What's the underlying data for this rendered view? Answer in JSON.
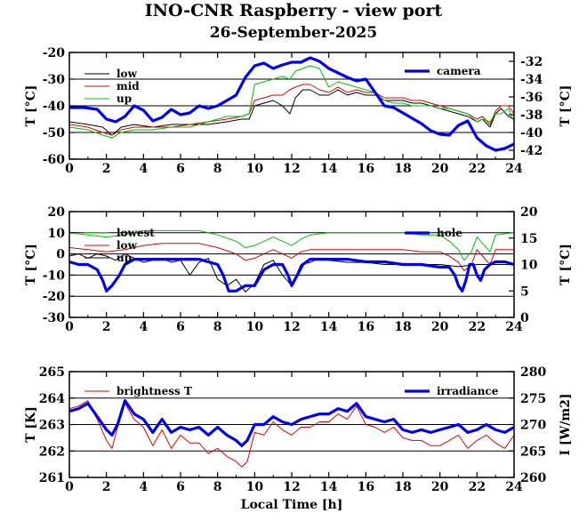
{
  "title": "INO-CNR Raspberry - view port",
  "subtitle": "26-September-2025",
  "xlabel": "Local Time [h]",
  "chart_data": [
    {
      "type": "line",
      "xlim": [
        0,
        24
      ],
      "ylim": [
        -60,
        -20
      ],
      "y2lim": [
        -43,
        -31
      ],
      "xticks": [
        "0",
        "2",
        "4",
        "6",
        "8",
        "10",
        "12",
        "14",
        "16",
        "18",
        "20",
        "22",
        "24"
      ],
      "yticks": [
        "-60",
        "-50",
        "-40",
        "-30",
        "-20"
      ],
      "y2ticks": [
        "-42",
        "-40",
        "-38",
        "-36",
        "-34",
        "-32"
      ],
      "ylabel": "T [°C]",
      "y2label": "T [°C]",
      "grid": true,
      "series": [
        {
          "name": "low",
          "color": "#000000",
          "axis": "left",
          "x": [
            0,
            1,
            1.8,
            2.3,
            2.8,
            3.5,
            4.5,
            5.5,
            6.5,
            7.5,
            8.5,
            9.3,
            9.7,
            10,
            10.5,
            11,
            11.5,
            11.9,
            12.2,
            12.6,
            13,
            13.5,
            14,
            14.5,
            15,
            15.5,
            16,
            16.5,
            17,
            17.5,
            18,
            18.5,
            19,
            19.5,
            20,
            20.5,
            21,
            21.5,
            22,
            22.3,
            22.7,
            23,
            23.3,
            23.7,
            24
          ],
          "y": [
            -46,
            -47,
            -48,
            -51,
            -48,
            -47,
            -48,
            -47,
            -47,
            -47,
            -46,
            -45,
            -45,
            -40,
            -39,
            -38,
            -40,
            -43,
            -37,
            -34,
            -34,
            -36,
            -36,
            -34,
            -36,
            -35,
            -36,
            -36,
            -38,
            -38,
            -38,
            -39,
            -39,
            -40,
            -41,
            -42,
            -43,
            -44,
            -46,
            -45,
            -48,
            -43,
            -41,
            -44,
            -45
          ]
        },
        {
          "name": "mid",
          "color": "#e00000",
          "axis": "left",
          "x": [
            0,
            1,
            1.8,
            2.3,
            2.8,
            3.5,
            4.5,
            5.5,
            6.5,
            7.5,
            8.5,
            9.3,
            9.7,
            10,
            10.5,
            11,
            11.5,
            11.9,
            12.2,
            12.6,
            13,
            13.5,
            14,
            14.5,
            15,
            15.5,
            16,
            16.5,
            17,
            17.5,
            18,
            18.5,
            19,
            19.5,
            20,
            20.5,
            21,
            21.5,
            22,
            22.3,
            22.7,
            23,
            23.3,
            23.7,
            24
          ],
          "y": [
            -47,
            -48,
            -50,
            -51,
            -49,
            -48,
            -48,
            -48,
            -47,
            -46,
            -45,
            -44,
            -43,
            -38,
            -37,
            -36,
            -36,
            -34,
            -33,
            -32,
            -32,
            -34,
            -35,
            -33,
            -35,
            -34,
            -35,
            -35,
            -37,
            -37,
            -37,
            -38,
            -38,
            -39,
            -40,
            -41,
            -42,
            -43,
            -45,
            -44,
            -47,
            -42,
            -40,
            -40,
            -43
          ]
        },
        {
          "name": "up",
          "color": "#00c000",
          "axis": "left",
          "x": [
            0,
            1,
            1.8,
            2.3,
            2.8,
            3.5,
            4.5,
            5.5,
            6.5,
            7.5,
            8.5,
            9.3,
            9.7,
            10,
            10.5,
            11,
            11.5,
            11.9,
            12.2,
            12.6,
            13,
            13.5,
            14,
            14.5,
            15,
            15.5,
            16,
            16.5,
            17,
            17.5,
            18,
            18.5,
            19,
            19.5,
            20,
            20.5,
            21,
            21.5,
            22,
            22.3,
            22.7,
            23,
            23.3,
            23.7,
            24
          ],
          "y": [
            -48,
            -49,
            -51,
            -52,
            -50,
            -49,
            -49,
            -48,
            -48,
            -46,
            -44,
            -44,
            -43,
            -32,
            -31,
            -30,
            -29,
            -30,
            -27,
            -26,
            -25,
            -26,
            -33,
            -31,
            -32,
            -33,
            -34,
            -35,
            -38,
            -39,
            -39,
            -40,
            -40,
            -40,
            -41,
            -41,
            -42,
            -43,
            -46,
            -45,
            -46,
            -43,
            -43,
            -41,
            -46
          ]
        },
        {
          "name": "camera",
          "color": "#0000ee",
          "axis": "right",
          "x": [
            0,
            0.8,
            1.5,
            2,
            2.5,
            3,
            3.5,
            4,
            4.5,
            5,
            5.5,
            6,
            6.5,
            7,
            7.5,
            8,
            8.5,
            9,
            9.5,
            10,
            10.5,
            11,
            11.5,
            12,
            12.5,
            13,
            13.5,
            14,
            14.5,
            15,
            15.5,
            16,
            16.5,
            17,
            17.5,
            18,
            18.5,
            19,
            19.5,
            20,
            20.5,
            21,
            21.5,
            22,
            22.5,
            23,
            23.5,
            24
          ],
          "y": [
            -37.2,
            -37.2,
            -37.4,
            -38.5,
            -38.8,
            -38.2,
            -37,
            -37.5,
            -38.7,
            -38.3,
            -37.4,
            -38,
            -37.8,
            -37,
            -37.3,
            -37,
            -36.4,
            -35.8,
            -33.8,
            -32.5,
            -32.2,
            -32.8,
            -32.4,
            -32.1,
            -32.1,
            -31.6,
            -32,
            -32.8,
            -33.3,
            -33.8,
            -34.2,
            -34,
            -35.5,
            -37,
            -37.2,
            -37.8,
            -38.4,
            -39,
            -39.8,
            -40.2,
            -40.3,
            -39.2,
            -38.7,
            -40.6,
            -41.5,
            -42,
            -41.8,
            -41.3
          ]
        }
      ],
      "legend": "top"
    },
    {
      "type": "line",
      "xlim": [
        0,
        24
      ],
      "ylim": [
        -30,
        20
      ],
      "y2lim": [
        0,
        20
      ],
      "xticks": [
        "0",
        "2",
        "4",
        "6",
        "8",
        "10",
        "12",
        "14",
        "16",
        "18",
        "20",
        "22",
        "24"
      ],
      "yticks": [
        "-30",
        "-20",
        "-10",
        "0",
        "10",
        "20"
      ],
      "y2ticks": [
        "0",
        "5",
        "10",
        "15",
        "20"
      ],
      "ylabel": "T [°C]",
      "y2label": "T [°C]",
      "grid": true,
      "series": [
        {
          "name": "lowest",
          "color": "#00c000",
          "axis": "left",
          "x": [
            0,
            1,
            2,
            3,
            4,
            5,
            6,
            7,
            8,
            9,
            9.5,
            10,
            10.5,
            11,
            11.5,
            12,
            12.5,
            13,
            14,
            15,
            16,
            17,
            18,
            19,
            20,
            20.5,
            21,
            21.3,
            21.7,
            22,
            22.3,
            22.7,
            23,
            24
          ],
          "y": [
            10,
            9,
            8,
            9,
            11,
            11,
            11,
            11,
            9,
            6,
            3,
            4,
            6,
            8,
            6,
            4,
            7,
            9,
            10,
            10,
            10,
            10,
            10,
            9,
            9,
            6,
            2,
            -3,
            1,
            8,
            5,
            1,
            9,
            10
          ]
        },
        {
          "name": "low",
          "color": "#e00000",
          "axis": "left",
          "x": [
            0,
            1,
            2,
            3,
            4,
            5,
            6,
            7,
            8,
            9,
            9.5,
            10,
            10.5,
            11,
            11.5,
            12,
            12.5,
            13,
            14,
            15,
            16,
            17,
            18,
            19,
            20,
            20.5,
            21,
            21.3,
            21.7,
            22,
            22.3,
            22.7,
            23,
            24
          ],
          "y": [
            3,
            2,
            1,
            2,
            4,
            5,
            5,
            5,
            3,
            0,
            -3,
            -2,
            0,
            2,
            0,
            -2,
            1,
            2,
            2,
            2,
            2,
            2,
            2,
            1,
            1,
            -1,
            -4,
            -8,
            -5,
            2,
            -1,
            -5,
            2,
            2
          ]
        },
        {
          "name": "up",
          "color": "#000000",
          "axis": "left",
          "x": [
            0,
            0.5,
            1,
            1.5,
            2,
            2.5,
            3,
            3.5,
            4,
            4.5,
            5,
            5.5,
            6,
            6.5,
            7,
            7.5,
            8,
            8.5,
            9,
            9.5,
            10,
            10.5,
            11,
            11.5,
            12,
            12.5,
            13,
            13.5,
            14,
            15,
            16,
            17,
            18,
            19,
            20,
            21,
            22,
            23,
            24
          ],
          "y": [
            -1,
            0,
            -2,
            0,
            -1,
            -3,
            0,
            -2,
            -4,
            -3,
            -2,
            -4,
            -3,
            -10,
            -4,
            -2,
            -12,
            -15,
            -12,
            -18,
            -14,
            -5,
            -3,
            -10,
            -15,
            -5,
            -4,
            -2,
            -3,
            -4,
            -4,
            -5,
            -5,
            -5,
            -5,
            -6,
            -5,
            -5,
            -5
          ]
        },
        {
          "name": "hole",
          "color": "#0000ee",
          "axis": "right",
          "x": [
            0,
            0.5,
            1,
            1.5,
            1.8,
            2,
            2.3,
            2.7,
            3,
            3.5,
            4,
            5,
            6,
            7,
            8,
            8.3,
            8.6,
            9,
            9.5,
            10,
            10.5,
            11,
            11.5,
            11.8,
            12,
            12.3,
            12.6,
            13,
            14,
            15,
            16,
            17,
            18,
            19,
            20,
            20.5,
            20.8,
            21,
            21.2,
            21.4,
            21.6,
            21.8,
            22,
            22.2,
            22.4,
            22.7,
            23,
            23.5,
            24
          ],
          "y": [
            10.5,
            10,
            10,
            9,
            7,
            5,
            6,
            8,
            10,
            11,
            11,
            11,
            11,
            11,
            10,
            8,
            5,
            5,
            6,
            6,
            9,
            10,
            10,
            8,
            6,
            8,
            10,
            11,
            11,
            11,
            10.5,
            10.5,
            10,
            10,
            9.5,
            9.5,
            8,
            6,
            5,
            7,
            10,
            10,
            8,
            7,
            9,
            10,
            10.5,
            10.5,
            10
          ]
        }
      ],
      "legend": "top"
    },
    {
      "type": "line",
      "xlim": [
        0,
        24
      ],
      "ylim": [
        261,
        265
      ],
      "y2lim": [
        260,
        280
      ],
      "xticks": [
        "0",
        "2",
        "4",
        "6",
        "8",
        "10",
        "12",
        "14",
        "16",
        "18",
        "20",
        "22",
        "24"
      ],
      "yticks": [
        "261",
        "262",
        "263",
        "264",
        "265"
      ],
      "y2ticks": [
        "260",
        "265",
        "270",
        "275",
        "280"
      ],
      "ylabel": "T [K]",
      "y2label": "I [W/m2]",
      "grid": true,
      "series": [
        {
          "name": "brightness T",
          "color": "#e00000",
          "axis": "left",
          "x": [
            0,
            0.5,
            1,
            1.5,
            2,
            2.3,
            2.6,
            3,
            3.5,
            4,
            4.5,
            5,
            5.5,
            6,
            6.5,
            7,
            7.5,
            8,
            8.5,
            9,
            9.3,
            9.6,
            10,
            10.5,
            11,
            11.5,
            12,
            12.5,
            13,
            13.5,
            14,
            14.5,
            15,
            15.5,
            16,
            16.5,
            17,
            17.5,
            18,
            18.5,
            19,
            19.5,
            20,
            20.5,
            21,
            21.5,
            22,
            22.5,
            23,
            23.5,
            24
          ],
          "y": [
            263.6,
            263.7,
            263.9,
            263.2,
            262.4,
            262.1,
            262.9,
            263.8,
            263.2,
            262.9,
            262.2,
            262.8,
            262.1,
            262.6,
            262.3,
            262.3,
            261.9,
            262.1,
            261.8,
            261.6,
            261.4,
            261.6,
            262.7,
            262.6,
            263.1,
            262.8,
            262.6,
            262.9,
            262.9,
            263.1,
            263.1,
            263.4,
            263.2,
            263.7,
            263.0,
            262.9,
            262.7,
            262.9,
            262.5,
            262.4,
            262.4,
            262.2,
            262.2,
            262.4,
            262.6,
            262.1,
            262.4,
            262.6,
            262.3,
            262.1,
            262.6
          ]
        },
        {
          "name": "irradiance",
          "color": "#0000ee",
          "axis": "right",
          "x": [
            0,
            0.5,
            1,
            1.5,
            2,
            2.3,
            2.6,
            3,
            3.5,
            4,
            4.5,
            5,
            5.5,
            6,
            6.5,
            7,
            7.5,
            8,
            8.5,
            9,
            9.3,
            9.6,
            10,
            10.5,
            11,
            11.5,
            12,
            12.5,
            13,
            13.5,
            14,
            14.5,
            15,
            15.5,
            16,
            16.5,
            17,
            17.5,
            18,
            18.5,
            19,
            19.5,
            20,
            20.5,
            21,
            21.5,
            22,
            22.5,
            23,
            23.5,
            24
          ],
          "y": [
            272.5,
            273,
            274,
            271.5,
            269,
            268,
            270,
            274.5,
            272,
            271,
            268.5,
            271,
            268.5,
            269.5,
            269,
            269.5,
            268,
            269.5,
            268,
            267,
            266,
            267,
            270,
            270,
            271.5,
            270.5,
            270,
            271,
            271.5,
            272,
            272,
            273,
            272.5,
            274,
            271.5,
            271,
            270.5,
            271,
            269,
            268.5,
            269,
            268.5,
            269,
            269.5,
            270,
            268.5,
            269,
            270,
            269,
            268.5,
            269.5
          ]
        }
      ],
      "legend": "top"
    }
  ]
}
